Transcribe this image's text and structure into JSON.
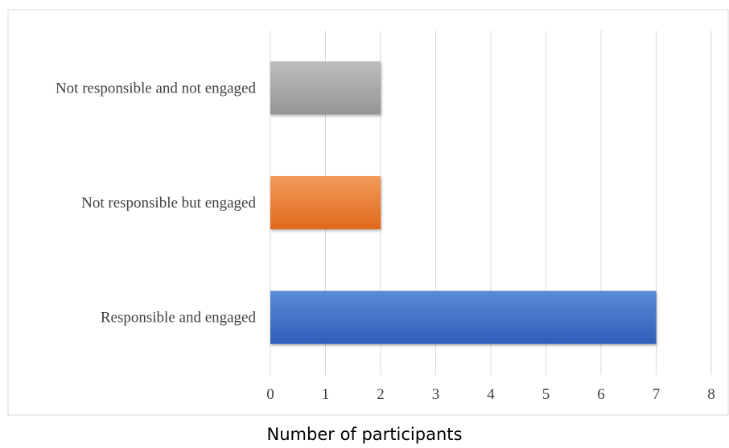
{
  "chart_data": {
    "type": "bar",
    "orientation": "horizontal",
    "categories": [
      "Responsible and engaged",
      "Not responsible but engaged",
      "Not responsible and not engaged"
    ],
    "values": [
      7,
      2,
      2
    ],
    "colors": [
      "#4472c4",
      "#ed7d31",
      "#a5a5a5"
    ],
    "xlabel": "Number of participants",
    "ylabel": "",
    "xlim": [
      0,
      8
    ],
    "xticks": [
      0,
      1,
      2,
      3,
      4,
      5,
      6,
      7,
      8
    ],
    "grid": true,
    "legend": "none"
  }
}
